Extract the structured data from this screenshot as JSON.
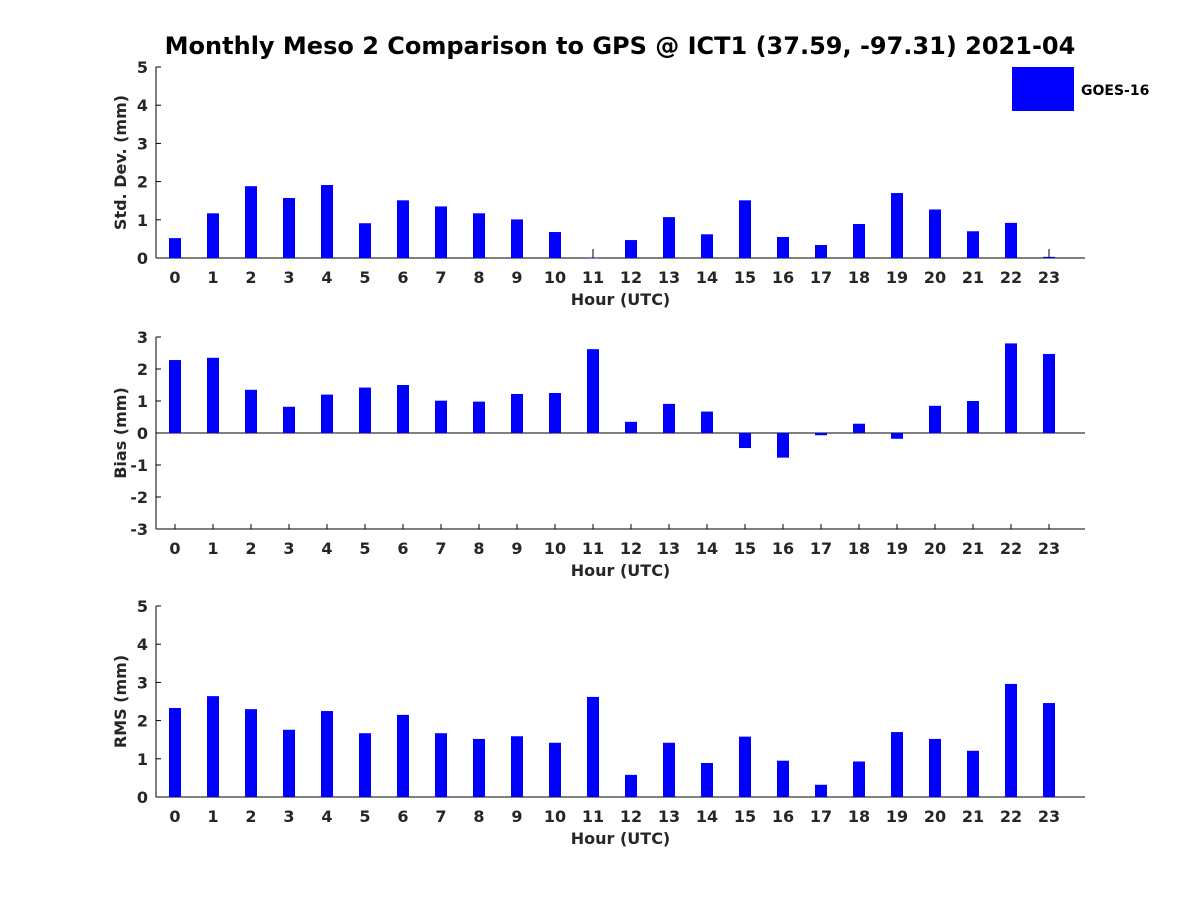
{
  "figure": {
    "title": "Monthly Meso 2 Comparison to GPS @ ICT1 (37.59, -97.31) 2021-04"
  },
  "legend": {
    "label": "GOES-16",
    "color": "#0000ff",
    "position": "top-right"
  },
  "chart_data": [
    {
      "type": "bar",
      "ylabel": "Std. Dev. (mm)",
      "xlabel": "Hour (UTC)",
      "ylim": [
        0,
        5
      ],
      "yticks": [
        0,
        1,
        2,
        3,
        4,
        5
      ],
      "categories": [
        "0",
        "1",
        "2",
        "3",
        "4",
        "5",
        "6",
        "7",
        "8",
        "9",
        "10",
        "11",
        "12",
        "13",
        "14",
        "15",
        "16",
        "17",
        "18",
        "19",
        "20",
        "21",
        "22",
        "23"
      ],
      "series": [
        {
          "name": "GOES-16",
          "color": "#0000ff",
          "values": [
            0.52,
            1.17,
            1.88,
            1.57,
            1.91,
            0.91,
            1.51,
            1.35,
            1.17,
            1.01,
            0.68,
            0.0,
            0.47,
            1.07,
            0.62,
            1.51,
            0.55,
            0.34,
            0.89,
            1.7,
            1.27,
            0.7,
            0.92,
            0.03
          ]
        }
      ],
      "error_marks": [
        11,
        23
      ]
    },
    {
      "type": "bar",
      "ylabel": "Bias (mm)",
      "xlabel": "Hour (UTC)",
      "ylim": [
        -3,
        3
      ],
      "yticks": [
        -3,
        -2,
        -1,
        0,
        1,
        2,
        3
      ],
      "categories": [
        "0",
        "1",
        "2",
        "3",
        "4",
        "5",
        "6",
        "7",
        "8",
        "9",
        "10",
        "11",
        "12",
        "13",
        "14",
        "15",
        "16",
        "17",
        "18",
        "19",
        "20",
        "21",
        "22",
        "23"
      ],
      "series": [
        {
          "name": "GOES-16",
          "color": "#0000ff",
          "values": [
            2.28,
            2.35,
            1.35,
            0.82,
            1.2,
            1.42,
            1.5,
            1.01,
            0.98,
            1.22,
            1.25,
            2.62,
            0.35,
            0.91,
            0.67,
            -0.47,
            -0.77,
            -0.07,
            0.29,
            -0.18,
            0.85,
            1.0,
            2.8,
            2.47
          ]
        }
      ]
    },
    {
      "type": "bar",
      "ylabel": "RMS (mm)",
      "xlabel": "Hour (UTC)",
      "ylim": [
        0,
        5
      ],
      "yticks": [
        0,
        1,
        2,
        3,
        4,
        5
      ],
      "categories": [
        "0",
        "1",
        "2",
        "3",
        "4",
        "5",
        "6",
        "7",
        "8",
        "9",
        "10",
        "11",
        "12",
        "13",
        "14",
        "15",
        "16",
        "17",
        "18",
        "19",
        "20",
        "21",
        "22",
        "23"
      ],
      "series": [
        {
          "name": "GOES-16",
          "color": "#0000ff",
          "values": [
            2.33,
            2.64,
            2.3,
            1.76,
            2.25,
            1.67,
            2.15,
            1.67,
            1.52,
            1.59,
            1.42,
            2.62,
            0.58,
            1.42,
            0.89,
            1.58,
            0.95,
            0.32,
            0.93,
            1.7,
            1.52,
            1.21,
            2.96,
            2.46
          ]
        }
      ]
    }
  ]
}
